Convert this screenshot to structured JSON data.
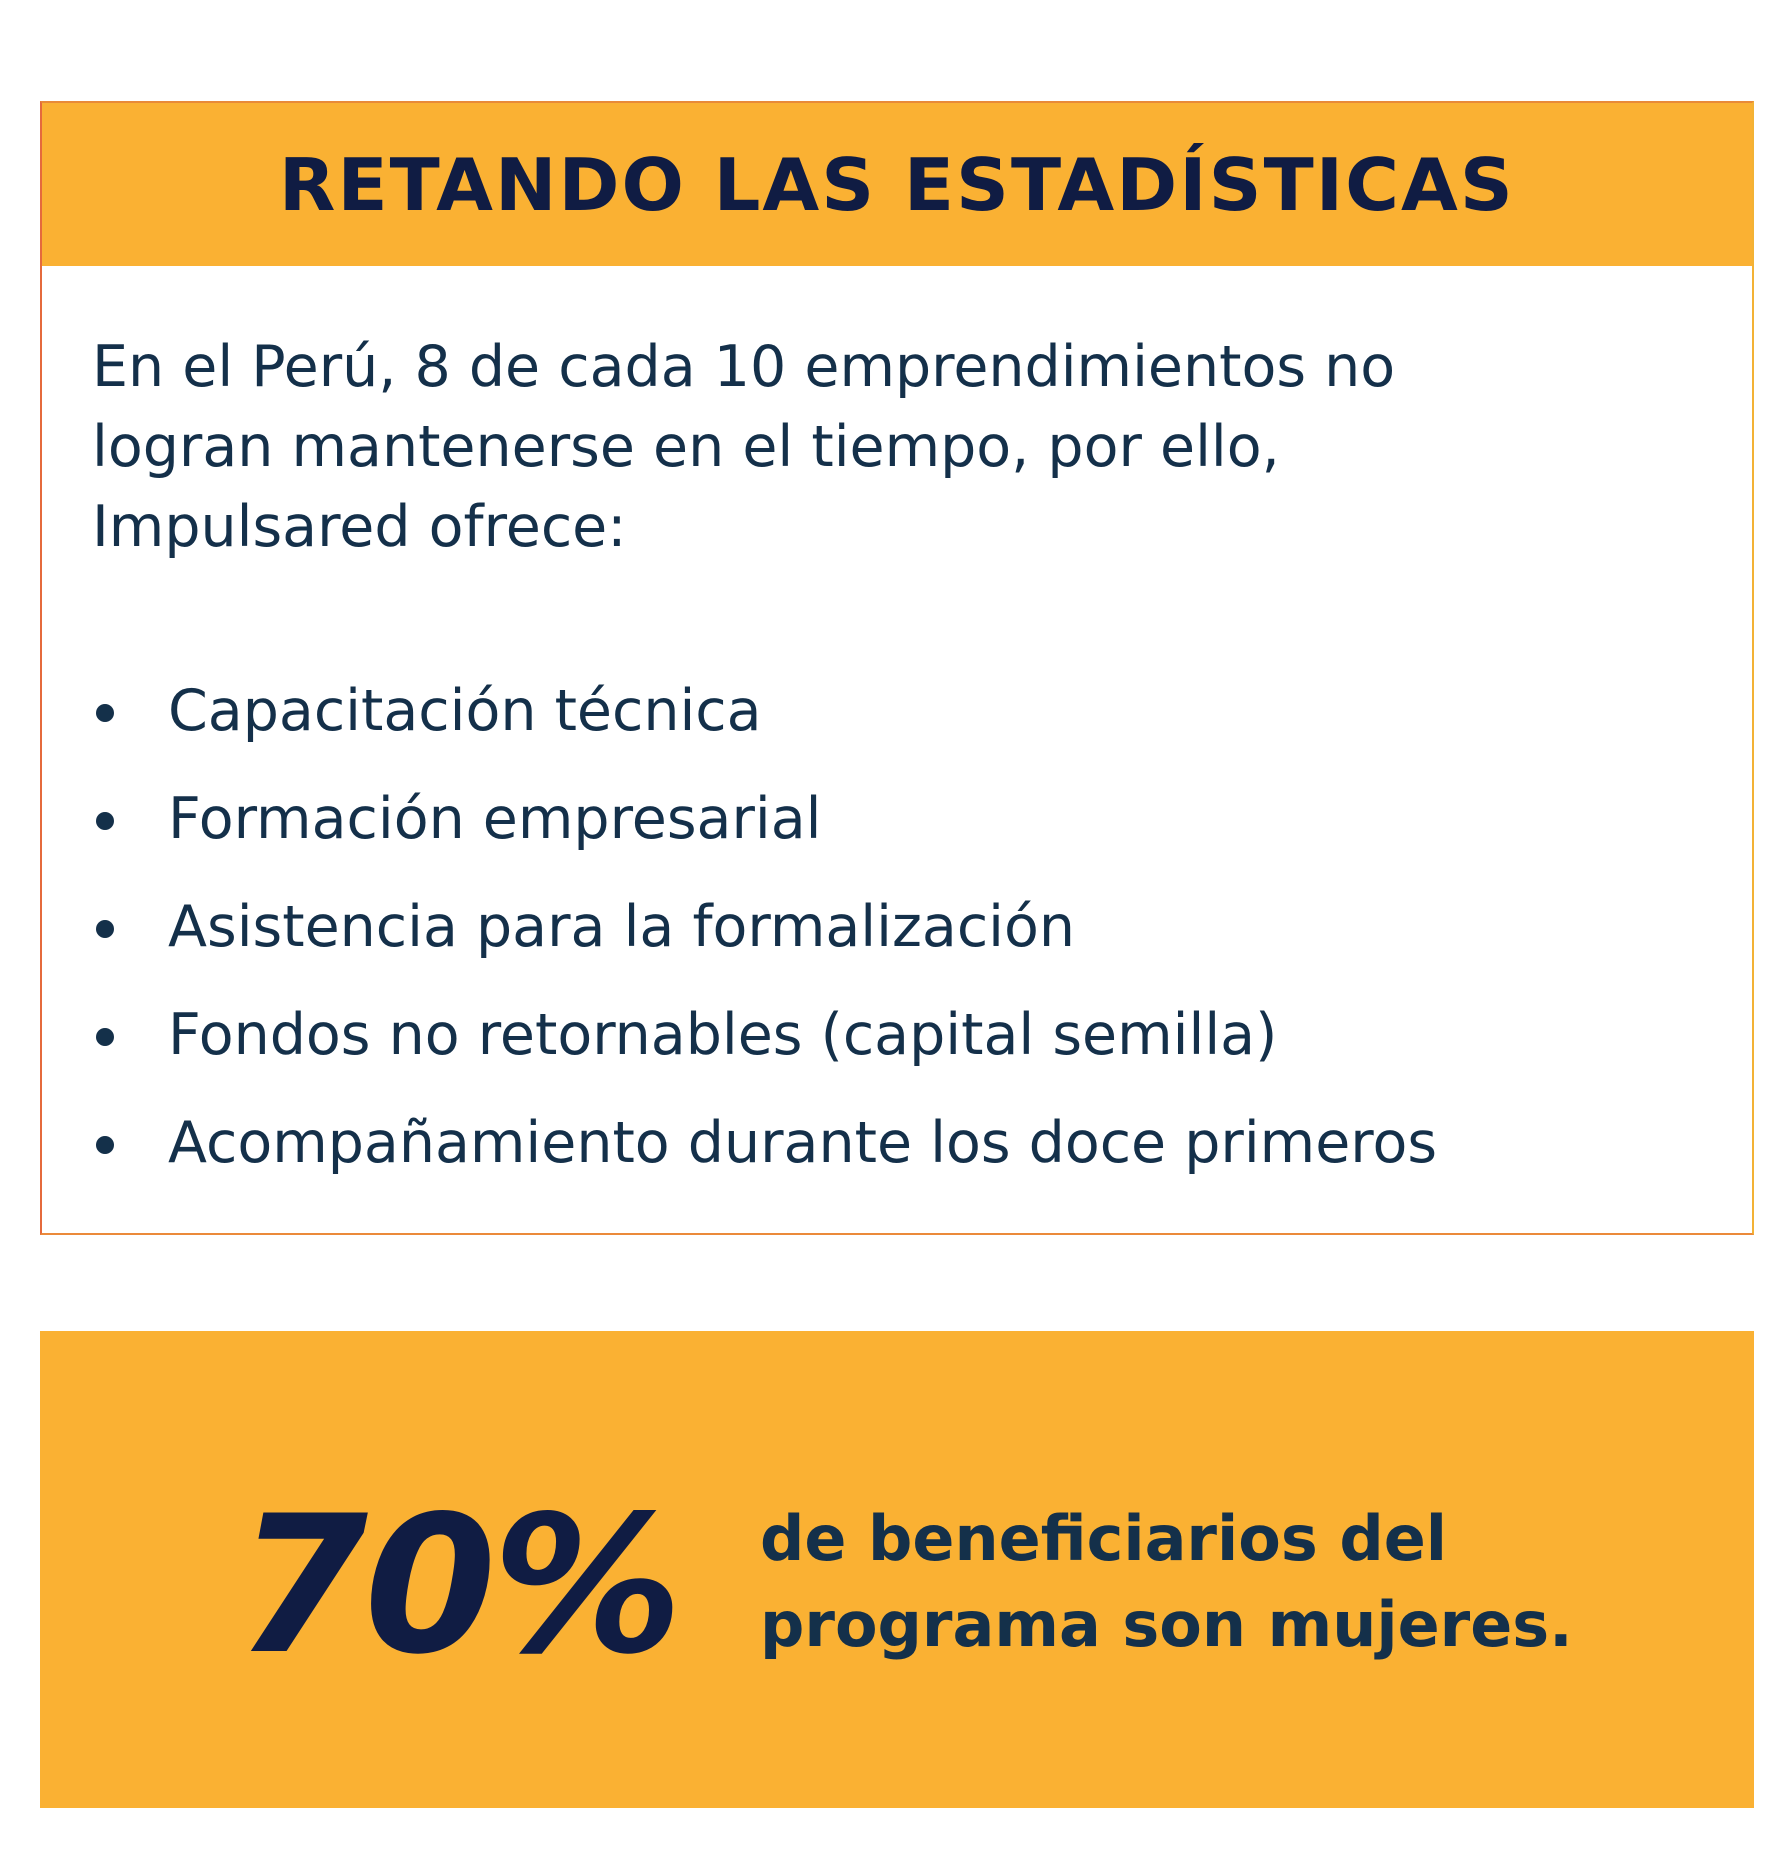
{
  "card": {
    "title": "RETANDO LAS ESTADÍSTICAS",
    "intro": "En el Perú, 8 de cada 10 emprendimientos no logran mantenerse en el tiempo, por ello, Impulsared ofrece:",
    "items": [
      "Capacitación técnica",
      "Formación empresarial",
      "Asistencia para la formalización",
      "Fondos no retornables (capital semilla)",
      "Acompañamiento durante los doce primeros"
    ]
  },
  "stat": {
    "value": "70%",
    "description": "de beneficiarios del programa son mujeres."
  },
  "colors": {
    "accent": "#fab133",
    "title_text": "#101c43",
    "body_text": "#14304a",
    "border_left": "#e56a3c"
  }
}
